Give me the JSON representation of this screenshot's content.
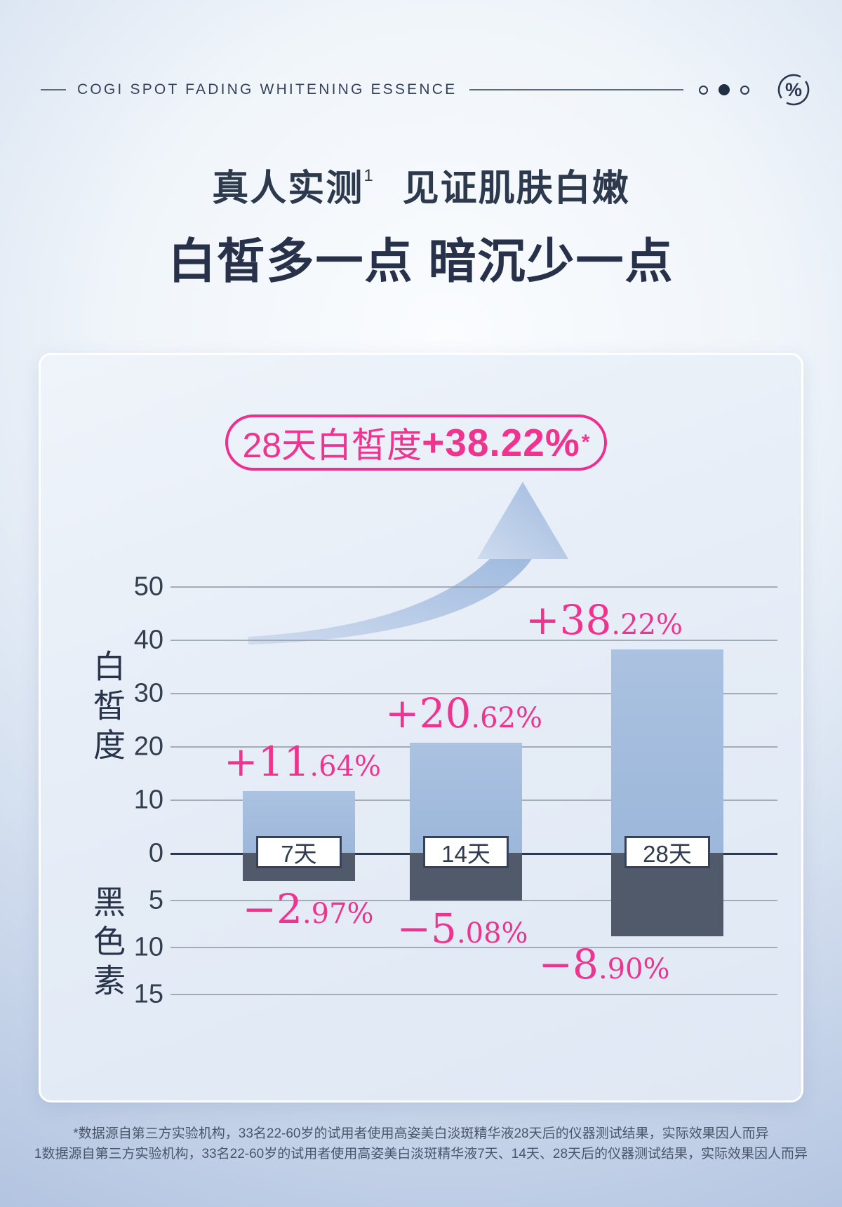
{
  "header": {
    "brand_line": "COGI SPOT FADING WHITENING ESSENCE",
    "pager_dots": [
      "outline",
      "filled",
      "outline"
    ],
    "percent_icon_glyph": "%"
  },
  "hero": {
    "title_main": "真人实测",
    "title_sup": "1",
    "title_rest": "见证肌肤白嫩",
    "subtitle": "白皙多一点 暗沉少一点"
  },
  "badge": {
    "prefix": "28天白皙度",
    "value": "+38.22%",
    "sup": "*"
  },
  "chart_data": {
    "type": "bar",
    "categories": [
      "7天",
      "14天",
      "28天"
    ],
    "series": [
      {
        "name": "白皙度",
        "values": [
          11.64,
          20.62,
          38.22
        ],
        "labels": [
          "+11.64%",
          "+20.62%",
          "+38.22%"
        ],
        "label_parts": [
          [
            "+11",
            ".64%"
          ],
          [
            "+20",
            ".62%"
          ],
          [
            "+38",
            ".22%"
          ]
        ],
        "color": "#a3bcde"
      },
      {
        "name": "黑色素",
        "values": [
          -2.97,
          -5.08,
          -8.9
        ],
        "labels": [
          "−2.97%",
          "−5.08%",
          "−8.90%"
        ],
        "label_parts": [
          [
            "−2",
            ".97%"
          ],
          [
            "−5",
            ".08%"
          ],
          [
            "−8",
            ".90%"
          ]
        ],
        "color": "#515a6a"
      }
    ],
    "y_axis_top": {
      "label": "白皙度",
      "ticks": [
        50,
        40,
        30,
        20,
        10,
        0
      ]
    },
    "y_axis_bottom": {
      "label": "黑色素",
      "ticks": [
        5,
        10,
        15
      ]
    },
    "grid": true,
    "legend_position": "none",
    "annotations": [
      "up-trend-arrow"
    ]
  },
  "footer": {
    "line1": "*数据源自第三方实验机构，33名22-60岁的试用者使用高姿美白淡斑精华液28天后的仪器测试结果，实际效果因人而异",
    "line2": "1数据源自第三方实验机构，33名22-60岁的试用者使用高姿美白淡斑精华液7天、14天、28天后的仪器测试结果，实际效果因人而异"
  },
  "colors": {
    "accent_pink": "#f0338f",
    "bar_light": "#a3bcde",
    "bar_dark": "#515a6a",
    "text_dark": "#2c3850",
    "grid_gray": "#97a1ad"
  }
}
